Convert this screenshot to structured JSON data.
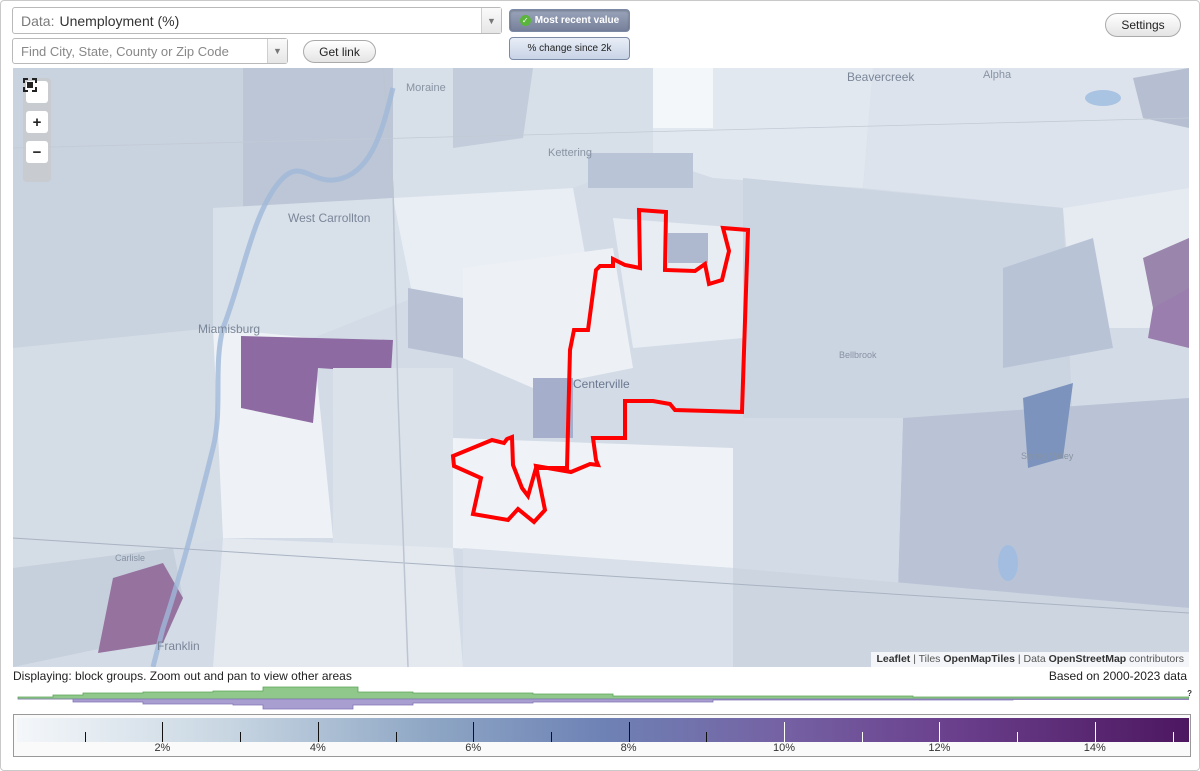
{
  "controls": {
    "data_prefix": "Data:",
    "data_value": "Unemployment (%)",
    "search_placeholder": "Find City, State, County or Zip Code",
    "get_link_label": "Get link",
    "most_recent_label": "Most recent value",
    "change_label": "% change since 2k",
    "settings_label": "Settings"
  },
  "map": {
    "labels": {
      "beavercreek": "Beavercreek",
      "alpha": "Alpha",
      "moraine": "Moraine",
      "kettering": "Kettering",
      "west_carrollton": "West Carrollton",
      "miamisburg": "Miamisburg",
      "centerville": "Centerville",
      "bellbrook": "Bellbrook",
      "spring_valley": "Spring Valley",
      "carlisle": "Carlisle",
      "franklin": "Franklin"
    },
    "attribution": {
      "leaflet": "Leaflet",
      "sep1": " | Tiles ",
      "tiles": "OpenMapTiles",
      "sep2": " | Data ",
      "osm": "OpenStreetMap",
      "tail": " contributors"
    },
    "zoom": {
      "fullscreen_icon": "fullscreen-icon",
      "plus": "+",
      "minus": "−"
    },
    "colors": {
      "highlight_outline": "#ff0000",
      "high_value": "#8a5f98",
      "mid_value": "#a9b6cc",
      "low_value": "#eef2f6"
    }
  },
  "footer": {
    "displaying": "Displaying: block groups. Zoom out and pan to view other areas",
    "based_on": "Based on 2000-2023 data",
    "help": "?"
  },
  "legend": {
    "labels": [
      "2%",
      "4%",
      "6%",
      "8%",
      "10%",
      "12%",
      "14%"
    ],
    "min": 0,
    "max": 15,
    "major_ticks": [
      2,
      4,
      6,
      8,
      10,
      12,
      14
    ],
    "minor_ticks": [
      1,
      3,
      5,
      7,
      9,
      11,
      13,
      15
    ]
  }
}
